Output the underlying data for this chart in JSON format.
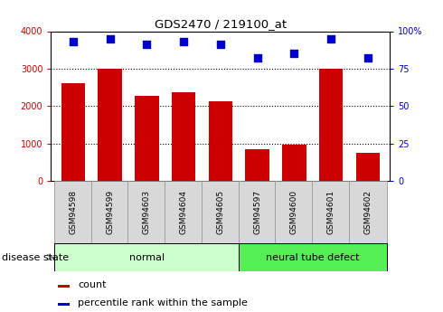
{
  "title": "GDS2470 / 219100_at",
  "categories": [
    "GSM94598",
    "GSM94599",
    "GSM94603",
    "GSM94604",
    "GSM94605",
    "GSM94597",
    "GSM94600",
    "GSM94601",
    "GSM94602"
  ],
  "bar_values": [
    2600,
    3000,
    2280,
    2380,
    2120,
    840,
    960,
    3000,
    760
  ],
  "percentile_values": [
    93,
    95,
    91,
    93,
    91,
    82,
    85,
    95,
    82
  ],
  "bar_color": "#cc0000",
  "dot_color": "#0000cc",
  "left_yticks": [
    0,
    1000,
    2000,
    3000,
    4000
  ],
  "left_yticklabels": [
    "0",
    "1000",
    "2000",
    "3000",
    "4000"
  ],
  "right_yticks": [
    0,
    25,
    50,
    75,
    100
  ],
  "right_yticklabels": [
    "0",
    "25",
    "50",
    "75",
    "100%"
  ],
  "ylim_left": [
    0,
    4000
  ],
  "ylim_right": [
    0,
    100
  ],
  "group_normal_indices": [
    0,
    1,
    2,
    3,
    4
  ],
  "group_neural_indices": [
    5,
    6,
    7,
    8
  ],
  "group_normal_label": "normal",
  "group_neural_label": "neural tube defect",
  "disease_state_label": "disease state",
  "legend_count_label": "count",
  "legend_pct_label": "percentile rank within the sample",
  "normal_bg": "#ccffcc",
  "neural_bg": "#55ee55",
  "tick_label_bg": "#d8d8d8",
  "left_tick_color": "#cc0000",
  "right_tick_color": "#0000cc",
  "dot_size": 35,
  "bar_width": 0.65,
  "n_categories": 9,
  "xlim": [
    -0.6,
    8.6
  ]
}
